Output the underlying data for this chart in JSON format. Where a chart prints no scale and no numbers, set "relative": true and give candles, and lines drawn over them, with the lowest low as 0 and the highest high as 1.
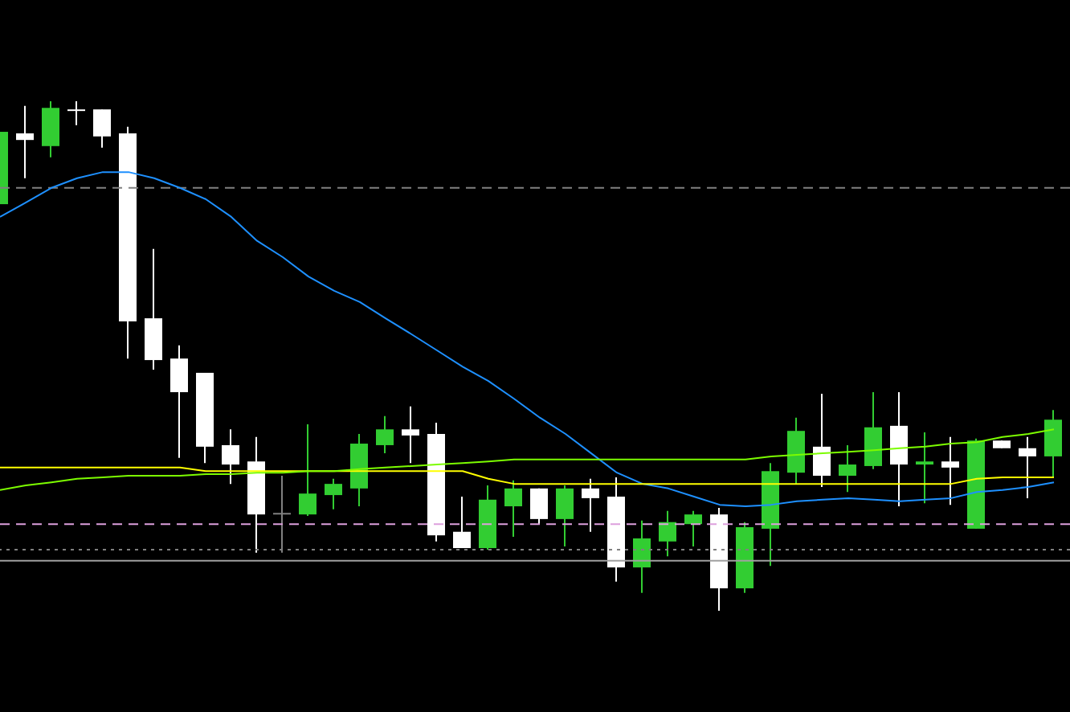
{
  "chart_data": {
    "type": "candlestick",
    "relative": true,
    "categories": [
      null,
      null,
      null,
      null,
      null,
      null,
      null,
      null,
      null,
      null,
      null,
      null,
      null,
      null,
      null,
      null,
      null,
      null,
      null,
      null,
      null,
      null,
      null,
      null,
      null,
      null,
      null,
      null,
      null,
      null,
      null,
      null,
      null,
      null,
      null,
      null,
      null,
      null,
      null,
      null,
      null,
      null
    ],
    "ohlc": [
      [
        0.798,
        0.94,
        0.798,
        0.94
      ],
      [
        0.937,
        0.991,
        0.849,
        0.924
      ],
      [
        0.912,
        1,
        0.89,
        0.987
      ],
      [
        0.984,
        1,
        0.953,
        0.984
      ],
      [
        0.984,
        0.984,
        0.909,
        0.931
      ],
      [
        0.937,
        0.95,
        0.495,
        0.568
      ],
      [
        0.574,
        0.71,
        0.473,
        0.492
      ],
      [
        0.495,
        0.521,
        0.3,
        0.429
      ],
      [
        0.467,
        0.467,
        0.29,
        0.322
      ],
      [
        0.325,
        0.356,
        0.249,
        0.287
      ],
      [
        0.293,
        0.341,
        0.114,
        0.189
      ],
      [
        0.192,
        0.265,
        0.114,
        0.192
      ],
      [
        0.189,
        0.366,
        0.186,
        0.23
      ],
      [
        0.227,
        0.259,
        0.199,
        0.249
      ],
      [
        0.24,
        0.347,
        0.205,
        0.328
      ],
      [
        0.325,
        0.382,
        0.309,
        0.356
      ],
      [
        0.356,
        0.401,
        0.29,
        0.344
      ],
      [
        0.347,
        0.369,
        0.136,
        0.148
      ],
      [
        0.155,
        0.224,
        0.123,
        0.123
      ],
      [
        0.123,
        0.246,
        0.12,
        0.218
      ],
      [
        0.205,
        0.256,
        0.145,
        0.24
      ],
      [
        0.24,
        0.24,
        0.17,
        0.18
      ],
      [
        0.18,
        0.246,
        0.126,
        0.24
      ],
      [
        0.24,
        0.259,
        0.155,
        0.221
      ],
      [
        0.224,
        0.262,
        0.057,
        0.085
      ],
      [
        0.085,
        0.177,
        0.035,
        0.142
      ],
      [
        0.136,
        0.196,
        0.107,
        0.174
      ],
      [
        0.17,
        0.196,
        0.126,
        0.189
      ],
      [
        0.189,
        0.202,
        0,
        0.044
      ],
      [
        0.044,
        0.174,
        0.035,
        0.164
      ],
      [
        0.161,
        0.29,
        0.088,
        0.274
      ],
      [
        0.271,
        0.379,
        0.249,
        0.353
      ],
      [
        0.322,
        0.426,
        0.243,
        0.265
      ],
      [
        0.265,
        0.325,
        0.233,
        0.287
      ],
      [
        0.284,
        0.429,
        0.278,
        0.36
      ],
      [
        0.363,
        0.429,
        0.205,
        0.287
      ],
      [
        0.287,
        0.35,
        0.211,
        0.293
      ],
      [
        0.293,
        0.341,
        0.208,
        0.281
      ],
      [
        0.161,
        0.338,
        0.161,
        0.334
      ],
      [
        0.334,
        0.334,
        0.319,
        0.319
      ],
      [
        0.319,
        0.341,
        0.221,
        0.303
      ],
      [
        0.303,
        0.394,
        0.262,
        0.375
      ]
    ],
    "colors": [
      "#32cd32",
      "#ffffff",
      "#32cd32",
      "#ffffff",
      "#ffffff",
      "#ffffff",
      "#ffffff",
      "#ffffff",
      "#ffffff",
      "#ffffff",
      "#ffffff",
      "#808080",
      "#32cd32",
      "#32cd32",
      "#32cd32",
      "#32cd32",
      "#ffffff",
      "#ffffff",
      "#ffffff",
      "#32cd32",
      "#32cd32",
      "#ffffff",
      "#32cd32",
      "#ffffff",
      "#ffffff",
      "#32cd32",
      "#32cd32",
      "#32cd32",
      "#ffffff",
      "#32cd32",
      "#32cd32",
      "#32cd32",
      "#ffffff",
      "#32cd32",
      "#32cd32",
      "#ffffff",
      "#32cd32",
      "#ffffff",
      "#32cd32",
      "#ffffff",
      "#ffffff",
      "#32cd32"
    ],
    "series": [
      {
        "type": "line",
        "color": "#1e90ff",
        "values": [
          0.773,
          0.801,
          0.83,
          0.849,
          0.861,
          0.861,
          0.849,
          0.83,
          0.808,
          0.773,
          0.726,
          0.694,
          0.656,
          0.628,
          0.606,
          0.574,
          0.543,
          0.511,
          0.479,
          0.451,
          0.416,
          0.379,
          0.347,
          0.309,
          0.271,
          0.249,
          0.24,
          0.224,
          0.208,
          0.205,
          0.208,
          0.215,
          0.218,
          0.221,
          0.218,
          0.215,
          0.218,
          0.221,
          0.233,
          0.237,
          0.243,
          0.252
        ]
      },
      {
        "type": "line",
        "color": "#ffff00",
        "values": [
          0.281,
          0.281,
          0.281,
          0.281,
          0.281,
          0.281,
          0.281,
          0.281,
          0.274,
          0.274,
          0.274,
          0.274,
          0.274,
          0.274,
          0.274,
          0.274,
          0.274,
          0.274,
          0.274,
          0.259,
          0.249,
          0.249,
          0.249,
          0.249,
          0.249,
          0.249,
          0.249,
          0.249,
          0.249,
          0.249,
          0.249,
          0.249,
          0.249,
          0.249,
          0.249,
          0.249,
          0.249,
          0.249,
          0.259,
          0.262,
          0.262,
          0.262
        ]
      },
      {
        "type": "line",
        "color": "#7cfc00",
        "values": [
          0.237,
          0.246,
          0.252,
          0.259,
          0.262,
          0.265,
          0.265,
          0.265,
          0.268,
          0.268,
          0.271,
          0.271,
          0.274,
          0.274,
          0.278,
          0.281,
          0.284,
          0.287,
          0.29,
          0.293,
          0.297,
          0.297,
          0.297,
          0.297,
          0.297,
          0.297,
          0.297,
          0.297,
          0.297,
          0.297,
          0.303,
          0.306,
          0.309,
          0.312,
          0.315,
          0.319,
          0.322,
          0.328,
          0.331,
          0.341,
          0.347,
          0.356
        ]
      }
    ],
    "ref_lines": [
      {
        "axis": "y",
        "value": 0.83,
        "color": "#808080",
        "line_style": "dashed"
      },
      {
        "axis": "y",
        "value": 0.17,
        "color": "#dda0dd",
        "line_style": "dashed"
      },
      {
        "axis": "y",
        "value": 0.12,
        "color": "#808080",
        "line_style": "dotted"
      },
      {
        "axis": "y",
        "value": 0.098,
        "color": "#a0a0a0",
        "line_style": "solid"
      }
    ]
  }
}
